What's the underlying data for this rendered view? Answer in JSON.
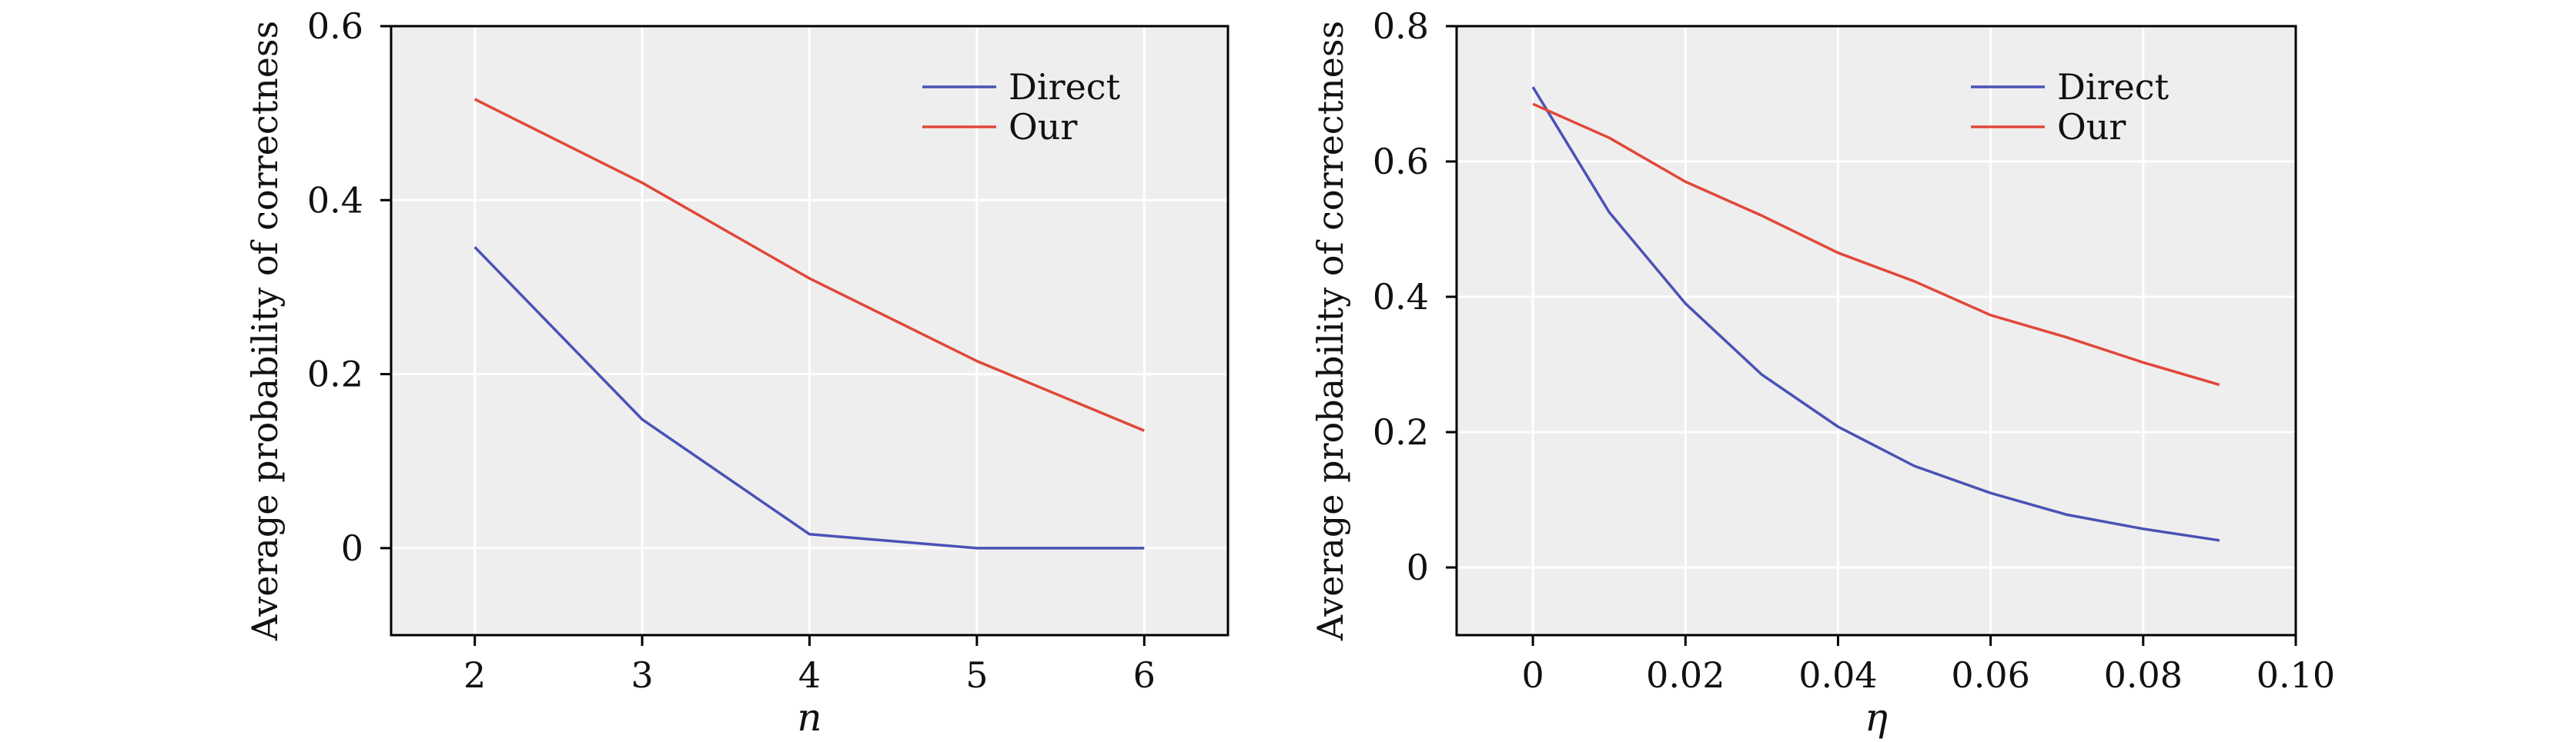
{
  "chart_data": [
    {
      "type": "line",
      "xlabel": "n",
      "ylabel": "Average probability of correctness",
      "xlim": [
        1.5,
        6.5
      ],
      "ylim": [
        -0.1,
        0.6
      ],
      "xticks": [
        2,
        3,
        4,
        5,
        6
      ],
      "xtick_labels": [
        "2",
        "3",
        "4",
        "5",
        "6"
      ],
      "yticks": [
        0,
        0.2,
        0.4,
        0.6
      ],
      "ytick_labels": [
        "0",
        "0.2",
        "0.4",
        "0.6"
      ],
      "grid": true,
      "legend_position": "top-right",
      "x": [
        2,
        3,
        4,
        5,
        6
      ],
      "series": [
        {
          "name": "Direct",
          "color": "#4a52b5",
          "values": [
            0.346,
            0.148,
            0.016,
            0.0,
            0.0
          ]
        },
        {
          "name": "Our",
          "color": "#e0483a",
          "values": [
            0.516,
            0.42,
            0.31,
            0.215,
            0.135
          ]
        }
      ]
    },
    {
      "type": "line",
      "xlabel": "η",
      "ylabel": "Average probability of correctness",
      "xlim": [
        -0.01,
        0.1
      ],
      "ylim": [
        -0.1,
        0.8
      ],
      "xticks": [
        0,
        0.02,
        0.04,
        0.06,
        0.08,
        0.1
      ],
      "xtick_labels": [
        "0",
        "0.02",
        "0.04",
        "0.06",
        "0.08",
        "0.10"
      ],
      "yticks": [
        0,
        0.2,
        0.4,
        0.6,
        0.8
      ],
      "ytick_labels": [
        "0",
        "0.2",
        "0.4",
        "0.6",
        "0.8"
      ],
      "grid": true,
      "legend_position": "top-right",
      "x": [
        0,
        0.01,
        0.02,
        0.03,
        0.04,
        0.05,
        0.06,
        0.07,
        0.08,
        0.09
      ],
      "series": [
        {
          "name": "Direct",
          "color": "#4a52b5",
          "values": [
            0.71,
            0.525,
            0.39,
            0.285,
            0.208,
            0.15,
            0.11,
            0.078,
            0.057,
            0.04
          ]
        },
        {
          "name": "Our",
          "color": "#e0483a",
          "values": [
            0.685,
            0.635,
            0.57,
            0.52,
            0.465,
            0.423,
            0.373,
            0.34,
            0.303,
            0.27
          ]
        }
      ]
    }
  ]
}
